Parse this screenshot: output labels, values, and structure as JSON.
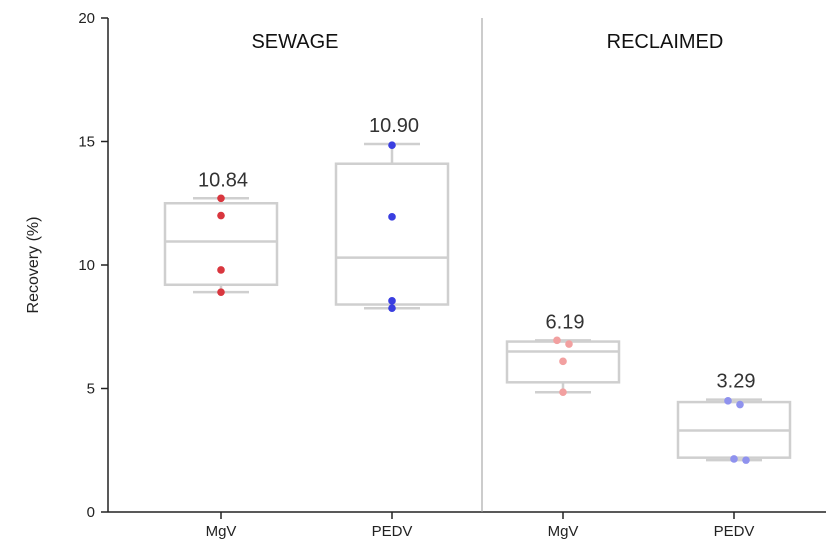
{
  "chart_data": {
    "type": "box",
    "ylabel": "Recovery (%)",
    "ylim": [
      0,
      20
    ],
    "yticks": [
      0,
      5,
      10,
      15,
      20
    ],
    "panels": [
      {
        "title": "SEWAGE",
        "categories": [
          "MgV",
          "PEDV"
        ]
      },
      {
        "title": "RECLAIMED",
        "categories": [
          "MgV",
          "PEDV"
        ]
      }
    ],
    "boxes": [
      {
        "panel": "SEWAGE",
        "category": "MgV",
        "min": 8.9,
        "q1": 9.2,
        "median": 10.95,
        "q3": 12.5,
        "max": 12.7,
        "mean_label": "10.84",
        "points": [
          12.7,
          12.0,
          9.8,
          8.9
        ],
        "point_color": "#d9363e"
      },
      {
        "panel": "SEWAGE",
        "category": "PEDV",
        "min": 8.25,
        "q1": 8.4,
        "median": 10.3,
        "q3": 14.1,
        "max": 14.9,
        "mean_label": "10.90",
        "points": [
          14.85,
          11.95,
          8.55,
          8.25
        ],
        "point_color": "#3a3ee0"
      },
      {
        "panel": "RECLAIMED",
        "category": "MgV",
        "min": 4.85,
        "q1": 5.25,
        "median": 6.5,
        "q3": 6.9,
        "max": 6.95,
        "mean_label": "6.19",
        "points": [
          6.95,
          6.8,
          6.1,
          4.85
        ],
        "point_color": "#f2a0a0"
      },
      {
        "panel": "RECLAIMED",
        "category": "PEDV",
        "min": 2.1,
        "q1": 2.2,
        "median": 3.3,
        "q3": 4.45,
        "max": 4.55,
        "mean_label": "3.29",
        "points": [
          4.5,
          4.35,
          2.15,
          2.1
        ],
        "point_color": "#8f92ee"
      }
    ],
    "grid": false,
    "legend": "none"
  }
}
